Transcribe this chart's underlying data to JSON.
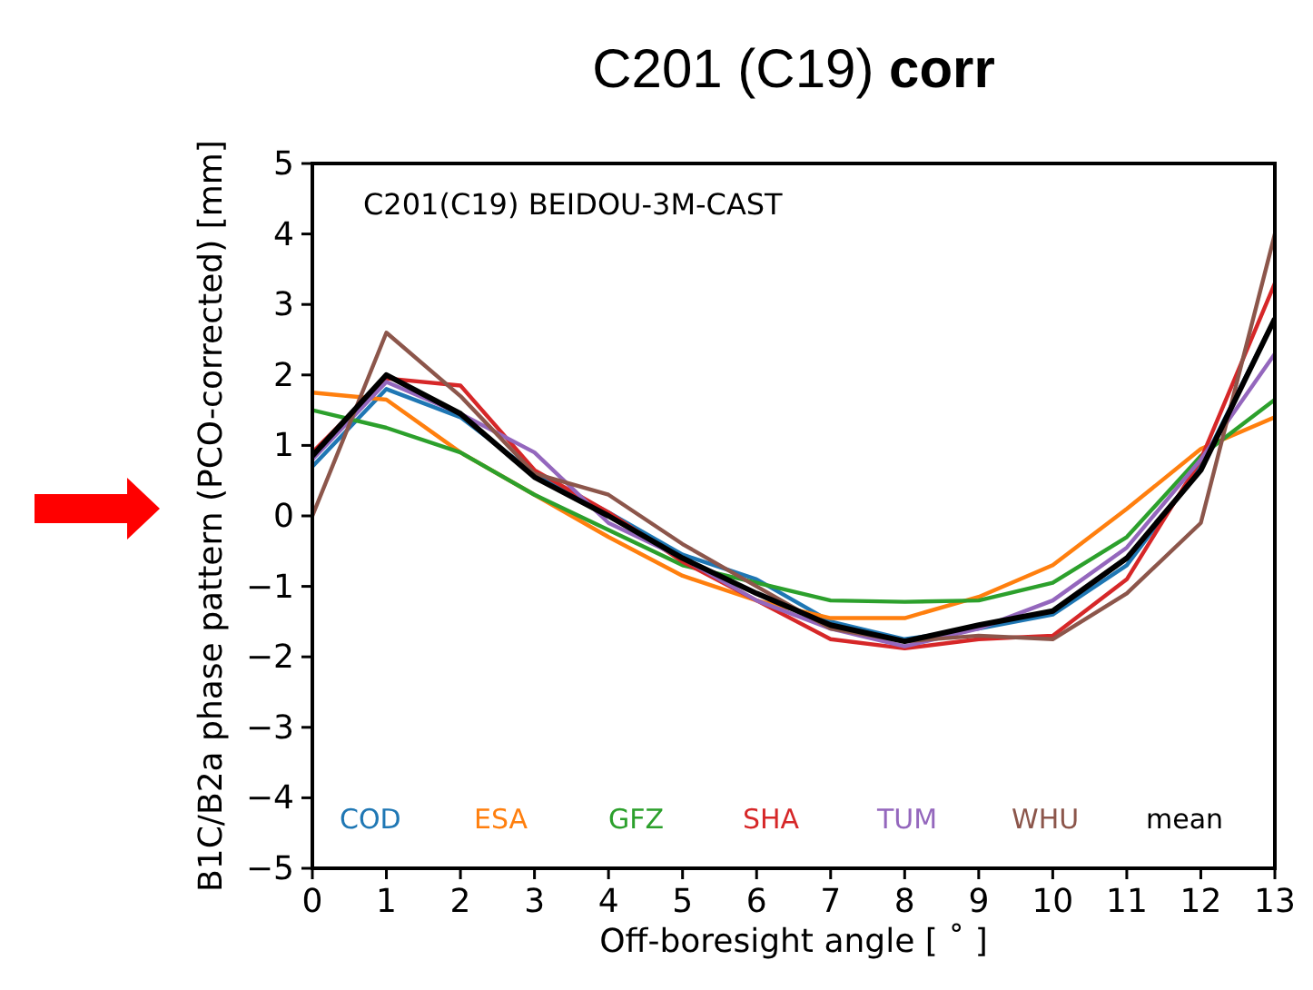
{
  "chart_data": {
    "type": "line",
    "title": "C201 (C19) corr",
    "xlabel": "Off-boresight angle [ ˚ ]",
    "ylabel": "B1C/B2a phase pattern (PCO-corrected) [mm]",
    "annotations": [
      "C201(C19) BEIDOU-3M-CAST"
    ],
    "x": [
      0,
      1,
      2,
      3,
      4,
      5,
      6,
      7,
      8,
      9,
      10,
      11,
      12,
      13
    ],
    "xlim": [
      0,
      13
    ],
    "xticks": [
      0,
      1,
      2,
      3,
      4,
      5,
      6,
      7,
      8,
      9,
      10,
      11,
      12,
      13
    ],
    "ylim": [
      -5,
      5
    ],
    "yticks": [
      -5,
      -4,
      -3,
      -2,
      -1,
      0,
      1,
      2,
      3,
      4,
      5
    ],
    "grid": false,
    "legend": "bottom",
    "marker": "none",
    "line_style": "solid",
    "series": [
      {
        "name": "COD",
        "color": "#1f77b4",
        "values": [
          0.7,
          1.8,
          1.4,
          0.6,
          0.05,
          -0.55,
          -0.9,
          -1.5,
          -1.75,
          -1.6,
          -1.4,
          -0.7,
          0.7,
          2.8
        ]
      },
      {
        "name": "ESA",
        "color": "#ff7f0e",
        "values": [
          1.75,
          1.65,
          0.9,
          0.3,
          -0.3,
          -0.85,
          -1.2,
          -1.45,
          -1.45,
          -1.15,
          -0.7,
          0.1,
          0.95,
          1.4
        ]
      },
      {
        "name": "GFZ",
        "color": "#2ca02c",
        "values": [
          1.5,
          1.25,
          0.9,
          0.3,
          -0.2,
          -0.7,
          -0.95,
          -1.2,
          -1.22,
          -1.2,
          -0.95,
          -0.3,
          0.85,
          1.65
        ]
      },
      {
        "name": "SHA",
        "color": "#d62728",
        "values": [
          0.9,
          1.95,
          1.85,
          0.65,
          0.05,
          -0.65,
          -1.2,
          -1.75,
          -1.88,
          -1.75,
          -1.7,
          -0.9,
          0.8,
          3.3
        ]
      },
      {
        "name": "TUM",
        "color": "#9467bd",
        "values": [
          0.8,
          1.9,
          1.45,
          0.9,
          -0.1,
          -0.6,
          -1.2,
          -1.6,
          -1.85,
          -1.6,
          -1.2,
          -0.45,
          0.8,
          2.3
        ]
      },
      {
        "name": "WHU",
        "color": "#8c564b",
        "values": [
          0.0,
          2.6,
          1.7,
          0.6,
          0.3,
          -0.4,
          -1.0,
          -1.6,
          -1.78,
          -1.7,
          -1.75,
          -1.1,
          -0.1,
          4.0
        ]
      },
      {
        "name": "mean",
        "color": "#000000",
        "values": [
          0.85,
          2.0,
          1.45,
          0.55,
          0.0,
          -0.6,
          -1.1,
          -1.55,
          -1.78,
          -1.55,
          -1.35,
          -0.6,
          0.65,
          2.8
        ]
      }
    ]
  }
}
